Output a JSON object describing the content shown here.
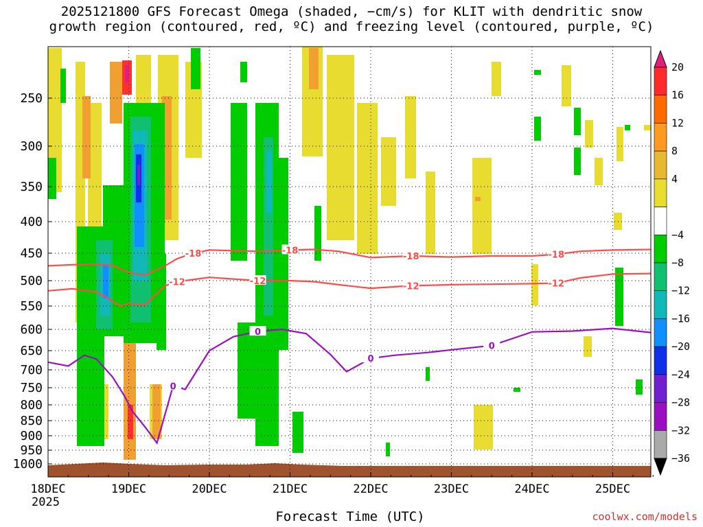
{
  "title": "2025121800 GFS Forecast Omega (shaded, −cm/s) for KLIT with dendritic snow\ngrowth region (contoured, red, ºC) and freezing level (contoured, purple, ºC)",
  "footer": {
    "xaxis_title": "Forecast Time (UTC)",
    "credit": "coolwx.com/models",
    "year_label": "2025"
  },
  "chart_data": {
    "type": "heatmap",
    "title": "2025121800 GFS Forecast Omega (shaded, −cm/s) for KLIT with dendritic snow growth region (contoured, red, ºC) and freezing level (contoured, purple, ºC)",
    "xlabel": "Forecast Time (UTC)",
    "ylabel": "",
    "x_ticks": [
      "18DEC",
      "19DEC",
      "20DEC",
      "21DEC",
      "22DEC",
      "23DEC",
      "24DEC",
      "25DEC"
    ],
    "x_range_days": [
      0,
      7.5
    ],
    "y_ticks": [
      250,
      300,
      350,
      400,
      450,
      500,
      550,
      600,
      650,
      700,
      750,
      800,
      850,
      900,
      950,
      1000
    ],
    "y_range_hpa": [
      200,
      1025
    ],
    "grid": true,
    "colorbar": {
      "ticks": [
        "20",
        "16",
        "12",
        "8",
        "4",
        "−4",
        "−8",
        "−12",
        "−16",
        "−20",
        "−24",
        "−28",
        "−32",
        "−36"
      ],
      "colors": [
        "#e0207a",
        "#ff2a2a",
        "#ff6a00",
        "#ff9a20",
        "#e8b830",
        "#e8dc30",
        "#ffffff",
        "#00cc00",
        "#10c070",
        "#10b8b8",
        "#1090ff",
        "#1030e8",
        "#7020d0",
        "#9a10c0",
        "#aaaaaa",
        "#000000"
      ]
    },
    "contours": [
      {
        "name": "dendritic_-18C",
        "color": "#ff4a4a",
        "labels": [
          "-18",
          "-18",
          "-18",
          "-18"
        ],
        "x": [
          0,
          0.3,
          0.6,
          0.8,
          1.0,
          1.2,
          1.45,
          1.6,
          1.8,
          2.0,
          2.3,
          2.6,
          3.0,
          3.3,
          3.6,
          4.0,
          4.5,
          5.0,
          5.5,
          6.0,
          6.3,
          6.6,
          7.0,
          7.5
        ],
        "y": [
          473,
          471,
          470,
          472,
          485,
          490,
          473,
          460,
          450,
          445,
          446,
          447,
          445,
          444,
          447,
          458,
          455,
          457,
          455,
          455,
          452,
          447,
          445,
          444
        ]
      },
      {
        "name": "dendritic_-12C",
        "color": "#ff4a4a",
        "labels": [
          "-12",
          "-12",
          "-12",
          "-12"
        ],
        "x": [
          0,
          0.3,
          0.6,
          0.8,
          0.9,
          1.0,
          1.2,
          1.45,
          1.6,
          1.8,
          2.0,
          2.3,
          2.6,
          3.0,
          3.3,
          3.6,
          4.0,
          4.5,
          5.0,
          5.5,
          6.0,
          6.3,
          6.6,
          7.0,
          7.5
        ],
        "y": [
          520,
          516,
          522,
          540,
          550,
          545,
          548,
          510,
          502,
          498,
          494,
          497,
          500,
          500,
          502,
          508,
          515,
          510,
          508,
          507,
          506,
          505,
          495,
          488,
          487
        ]
      },
      {
        "name": "freezing_level_0C",
        "color": "#9a10c0",
        "labels": [
          "0",
          "0",
          "0",
          "0"
        ],
        "x": [
          0,
          0.25,
          0.45,
          0.6,
          0.8,
          0.95,
          1.05,
          1.2,
          1.35,
          1.55,
          1.7,
          2.0,
          2.3,
          2.6,
          2.9,
          3.2,
          3.5,
          3.7,
          4.0,
          4.3,
          4.7,
          5.0,
          5.5,
          6.0,
          6.5,
          7.0,
          7.5
        ],
        "y": [
          680,
          690,
          662,
          672,
          720,
          775,
          822,
          870,
          925,
          745,
          755,
          650,
          617,
          605,
          600,
          610,
          660,
          705,
          670,
          662,
          655,
          648,
          638,
          606,
          604,
          598,
          608
        ]
      }
    ],
    "filled_regions": [
      {
        "name": "strong_ascent_column",
        "value_range": [
          -28,
          -16
        ],
        "x": [
          0.85,
          1.2
        ],
        "y": [
          260,
          560
        ]
      },
      {
        "name": "ascent_zone_day1",
        "value_range": [
          -16,
          -4
        ],
        "x": [
          0.4,
          1.6
        ],
        "y": [
          220,
          920
        ]
      },
      {
        "name": "ascent_zone_day3",
        "value_range": [
          -16,
          -4
        ],
        "x": [
          2.4,
          3.45
        ],
        "y": [
          200,
          960
        ]
      },
      {
        "name": "descent_max",
        "value_range": [
          12,
          20
        ],
        "x": [
          0.9,
          1.1
        ],
        "y": [
          200,
          260
        ]
      },
      {
        "name": "descent_low_level",
        "value_range": [
          8,
          12
        ],
        "x": [
          1.0,
          1.1
        ],
        "y": [
          830,
          950
        ]
      },
      {
        "name": "weak_descent_days4_7",
        "value_range": [
          4,
          8
        ],
        "x": [
          3.5,
          7.5
        ],
        "y": [
          200,
          960
        ]
      }
    ],
    "surface": {
      "name": "terrain",
      "color": "#a0522d",
      "y_hpa": 1003
    }
  }
}
